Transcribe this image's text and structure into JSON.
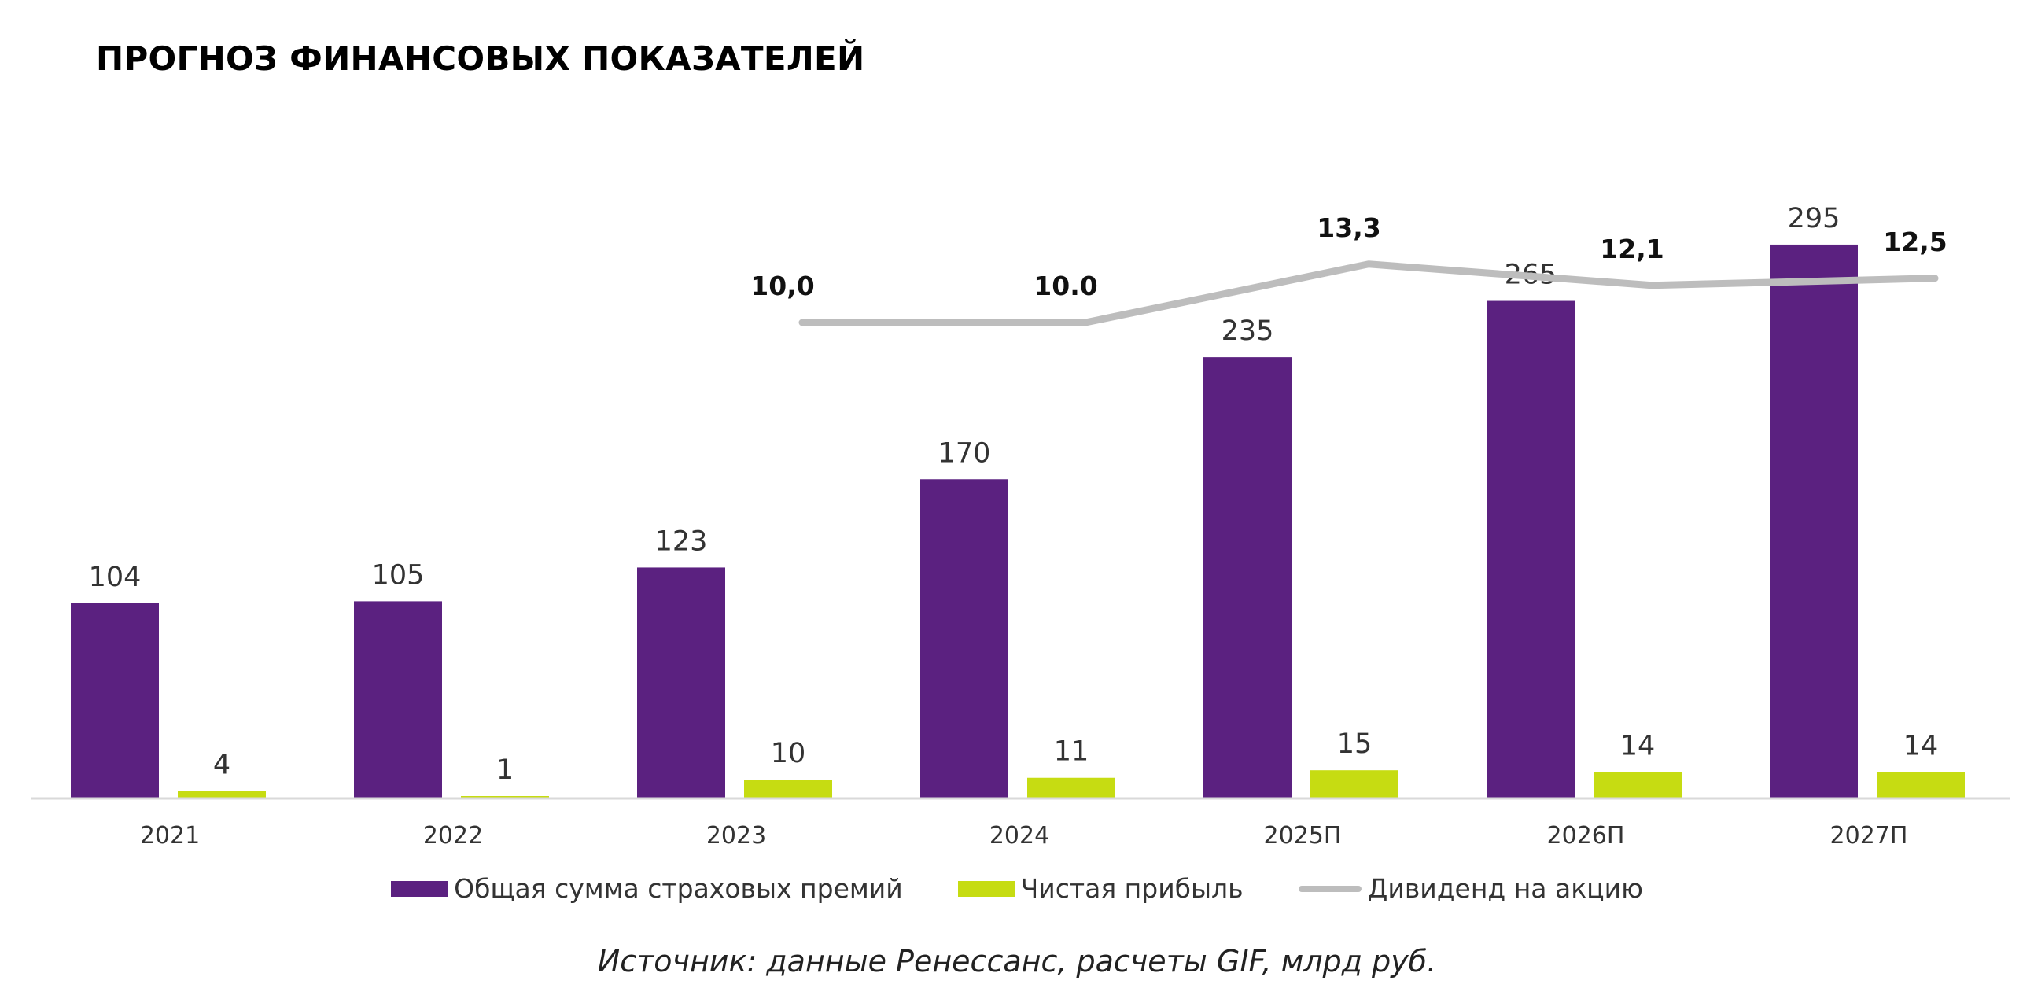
{
  "title": "ПРОГНОЗ ФИНАНСОВЫХ ПОКАЗАТЕЛЕЙ",
  "source": "Источник: данные Ренессанс, расчеты GIF, млрд руб.",
  "colors": {
    "premiums": "#5B2180",
    "profit": "#C6DC12",
    "dividend": "#BDBDBD",
    "axis": "#D9D9D9"
  },
  "legend": [
    {
      "label": "Общая сумма страховых премий",
      "kind": "bar",
      "color": "#5B2180"
    },
    {
      "label": "Чистая прибыль",
      "kind": "bar",
      "color": "#C6DC12"
    },
    {
      "label": "Дивиденд на акцию",
      "kind": "line",
      "color": "#BDBDBD"
    }
  ],
  "chart_data": {
    "type": "bar",
    "title": "ПРОГНОЗ ФИНАНСОВЫХ ПОКАЗАТЕЛЕЙ",
    "categories": [
      "2021",
      "2022",
      "2023",
      "2024",
      "2025П",
      "2026П",
      "2027П"
    ],
    "series": [
      {
        "name": "Общая сумма страховых премий",
        "type": "bar",
        "values": [
          104,
          105,
          123,
          170,
          235,
          265,
          295
        ]
      },
      {
        "name": "Чистая прибыль",
        "type": "bar",
        "values": [
          4,
          1,
          10,
          11,
          15,
          14,
          14
        ]
      },
      {
        "name": "Дивиденд на акцию",
        "type": "line",
        "secondary_axis": true,
        "values": [
          null,
          null,
          10.0,
          10.0,
          13.3,
          12.1,
          12.5
        ],
        "labels": [
          "",
          "",
          "10,0",
          "10.0",
          "13,3",
          "12,1",
          "12,5"
        ]
      }
    ],
    "ylim": [
      0,
      300
    ],
    "y2lim": [
      0,
      17
    ],
    "grid": false,
    "legend_position": "bottom"
  }
}
